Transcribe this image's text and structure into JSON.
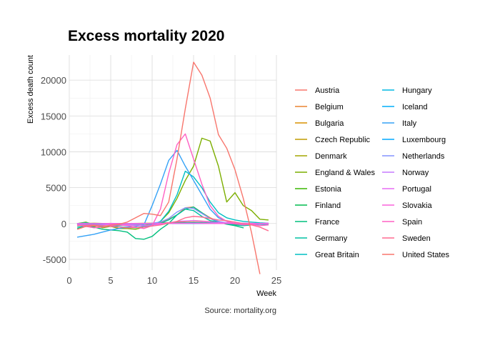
{
  "chart_data": {
    "type": "line",
    "title": "Excess mortality 2020",
    "xlabel": "Week",
    "ylabel": "Excess death count",
    "caption": "Source: mortality.org",
    "xlim": [
      0,
      25
    ],
    "ylim": [
      -6500,
      23500
    ],
    "xticks": [
      0,
      5,
      10,
      15,
      20,
      25
    ],
    "yticks": [
      -5000,
      0,
      5000,
      10000,
      15000,
      20000
    ],
    "grid": true,
    "legend_position": "right",
    "series": [
      {
        "name": "Austria",
        "color": "#F8766D",
        "x": [
          1,
          3,
          5,
          7,
          9,
          11,
          13,
          15,
          17,
          19,
          21,
          23,
          24
        ],
        "y": [
          0,
          -60,
          20,
          -40,
          10,
          60,
          200,
          420,
          260,
          90,
          20,
          0,
          -20
        ]
      },
      {
        "name": "Belgium",
        "color": "#EA8331",
        "x": [
          1,
          3,
          5,
          7,
          9,
          11,
          12,
          13,
          14,
          15,
          16,
          17,
          18,
          19,
          20,
          21,
          22,
          23,
          24
        ],
        "y": [
          -200,
          -400,
          -300,
          -200,
          -100,
          120,
          600,
          1200,
          2200,
          2300,
          1500,
          800,
          300,
          0,
          -100,
          -150,
          -100,
          -120,
          -100
        ]
      },
      {
        "name": "Bulgaria",
        "color": "#D89000",
        "x": [
          1,
          3,
          5,
          7,
          9,
          11,
          13,
          15,
          17,
          19,
          21,
          23,
          24
        ],
        "y": [
          0,
          20,
          -10,
          0,
          30,
          50,
          80,
          60,
          40,
          20,
          0,
          -10,
          0
        ]
      },
      {
        "name": "Czech Republic",
        "color": "#C09B00",
        "x": [
          1,
          3,
          5,
          7,
          9,
          11,
          13,
          15,
          17,
          19,
          21,
          23,
          24
        ],
        "y": [
          -100,
          -200,
          -150,
          -100,
          -120,
          0,
          150,
          200,
          100,
          50,
          0,
          -50,
          -30
        ]
      },
      {
        "name": "Denmark",
        "color": "#A3A500",
        "x": [
          1,
          3,
          5,
          7,
          9,
          11,
          13,
          15,
          17,
          19,
          21,
          23,
          24
        ],
        "y": [
          0,
          30,
          -20,
          10,
          -40,
          20,
          100,
          150,
          80,
          20,
          0,
          -10,
          0
        ]
      },
      {
        "name": "England & Wales",
        "color": "#7CAE00",
        "x": [
          1,
          2,
          3,
          4,
          5,
          6,
          7,
          8,
          9,
          10,
          11,
          12,
          13,
          14,
          15,
          16,
          17,
          18,
          19,
          20,
          21,
          22,
          23,
          24
        ],
        "y": [
          0,
          200,
          -200,
          -600,
          -400,
          -700,
          -700,
          -800,
          -500,
          -300,
          300,
          1500,
          3500,
          6000,
          8000,
          11900,
          11500,
          8000,
          3000,
          4300,
          2500,
          1800,
          600,
          500
        ]
      },
      {
        "name": "Estonia",
        "color": "#39B600",
        "x": [
          1,
          3,
          5,
          7,
          9,
          11,
          13,
          15,
          17,
          19,
          21,
          23,
          24
        ],
        "y": [
          0,
          -10,
          10,
          0,
          -5,
          5,
          10,
          15,
          5,
          0,
          -5,
          0,
          0
        ]
      },
      {
        "name": "Finland",
        "color": "#00BB4E",
        "x": [
          1,
          3,
          5,
          7,
          9,
          11,
          13,
          15,
          17,
          19,
          21,
          23,
          24
        ],
        "y": [
          0,
          -20,
          10,
          -10,
          0,
          20,
          50,
          60,
          30,
          10,
          0,
          -10,
          0
        ]
      },
      {
        "name": "France",
        "color": "#00BF7D",
        "x": [
          1,
          2,
          3,
          4,
          5,
          6,
          7,
          8,
          9,
          10,
          11,
          12,
          13,
          14,
          15,
          16,
          17,
          18,
          19,
          20,
          21
        ],
        "y": [
          -700,
          -400,
          -500,
          -800,
          -900,
          -1000,
          -1200,
          -2100,
          -2200,
          -1800,
          -800,
          0,
          1200,
          2000,
          2300,
          1500,
          700,
          200,
          -100,
          -300,
          -600
        ]
      },
      {
        "name": "Germany",
        "color": "#00C1A3",
        "x": [
          1,
          3,
          5,
          7,
          9,
          11,
          12,
          13,
          14,
          15,
          16,
          17,
          18,
          19,
          20,
          21,
          22,
          23,
          24
        ],
        "y": [
          -500,
          -300,
          -400,
          -200,
          -300,
          0,
          500,
          1200,
          2000,
          1800,
          1000,
          400,
          200,
          0,
          -200,
          -300,
          -200,
          -100,
          -200
        ]
      },
      {
        "name": "Great Britain",
        "color": "#00BFC4",
        "x": [
          1,
          2,
          3,
          4,
          5,
          6,
          7,
          8,
          9,
          10,
          11,
          12,
          13,
          14,
          15,
          16,
          17,
          18,
          19,
          20,
          21,
          22,
          23,
          24
        ],
        "y": [
          0,
          100,
          -100,
          -400,
          -300,
          -500,
          -500,
          -600,
          -400,
          -200,
          300,
          1700,
          4000,
          7300,
          6500,
          5000,
          3000,
          1500,
          800,
          500,
          300,
          200,
          100,
          50
        ]
      },
      {
        "name": "Hungary",
        "color": "#00B9E3",
        "x": [
          1,
          3,
          5,
          7,
          9,
          11,
          13,
          15,
          17,
          19,
          21,
          23,
          24
        ],
        "y": [
          -50,
          -100,
          -50,
          -80,
          -60,
          0,
          80,
          120,
          60,
          20,
          0,
          -20,
          -10
        ]
      },
      {
        "name": "Iceland",
        "color": "#00ADFA",
        "x": [
          1,
          3,
          5,
          7,
          9,
          11,
          13,
          15,
          17,
          19,
          21,
          23,
          24
        ],
        "y": [
          0,
          5,
          -5,
          0,
          5,
          0,
          10,
          5,
          0,
          -5,
          0,
          0,
          0
        ]
      },
      {
        "name": "Italy",
        "color": "#35A2F6",
        "x": [
          1,
          2,
          3,
          4,
          5,
          6,
          7,
          8,
          9,
          10,
          11,
          12,
          13,
          14,
          15,
          16,
          17,
          18,
          19,
          20,
          21
        ],
        "y": [
          -1900,
          -1700,
          -1500,
          -1200,
          -900,
          -700,
          -500,
          -400,
          -200,
          2500,
          5500,
          8800,
          10200,
          8000,
          6000,
          4000,
          2000,
          800,
          300,
          0,
          -200
        ]
      },
      {
        "name": "Luxembourg",
        "color": "#00A9FF",
        "x": [
          1,
          3,
          5,
          7,
          9,
          11,
          13,
          15,
          17,
          19,
          21,
          23,
          24
        ],
        "y": [
          0,
          -10,
          5,
          0,
          -5,
          5,
          20,
          15,
          5,
          0,
          -5,
          0,
          0
        ]
      },
      {
        "name": "Netherlands",
        "color": "#8494FF",
        "x": [
          1,
          3,
          5,
          7,
          9,
          11,
          12,
          13,
          14,
          15,
          16,
          17,
          18,
          19,
          20,
          21,
          22,
          23,
          24
        ],
        "y": [
          -100,
          -200,
          -150,
          -100,
          -100,
          200,
          700,
          1600,
          2200,
          2100,
          1400,
          700,
          300,
          100,
          0,
          -100,
          -50,
          -100,
          -50
        ]
      },
      {
        "name": "Norway",
        "color": "#C77CFF",
        "x": [
          1,
          3,
          5,
          7,
          9,
          11,
          13,
          15,
          17,
          19,
          21,
          23,
          24
        ],
        "y": [
          0,
          -30,
          -10,
          -20,
          -10,
          10,
          40,
          30,
          10,
          0,
          -10,
          0,
          0
        ]
      },
      {
        "name": "Portugal",
        "color": "#E76BF3",
        "x": [
          1,
          3,
          5,
          7,
          9,
          11,
          13,
          15,
          17,
          19,
          21,
          23,
          24
        ],
        "y": [
          -200,
          -300,
          -100,
          -200,
          -300,
          -100,
          300,
          400,
          200,
          100,
          50,
          0,
          50
        ]
      },
      {
        "name": "Slovakia",
        "color": "#FA62DB",
        "x": [
          1,
          3,
          5,
          7,
          9,
          11,
          13,
          15,
          17,
          19,
          21,
          23,
          24
        ],
        "y": [
          0,
          -20,
          10,
          -10,
          -20,
          0,
          20,
          30,
          10,
          0,
          -10,
          0,
          0
        ]
      },
      {
        "name": "Spain",
        "color": "#FF61C3",
        "x": [
          1,
          2,
          3,
          4,
          5,
          6,
          7,
          8,
          9,
          10,
          11,
          12,
          13,
          14,
          15,
          16,
          17,
          18,
          19,
          20,
          21,
          22,
          23,
          24
        ],
        "y": [
          -200,
          -400,
          -600,
          -500,
          -300,
          -200,
          -300,
          -500,
          -700,
          -300,
          2000,
          7000,
          11000,
          12500,
          9000,
          5500,
          2500,
          1000,
          300,
          0,
          -200,
          -100,
          -300,
          -200
        ]
      },
      {
        "name": "Sweden",
        "color": "#FF6C91",
        "x": [
          1,
          3,
          5,
          7,
          9,
          11,
          13,
          14,
          15,
          16,
          17,
          18,
          19,
          20,
          21,
          22,
          23,
          24
        ],
        "y": [
          -300,
          -200,
          -400,
          -600,
          -500,
          -200,
          300,
          800,
          1000,
          900,
          700,
          500,
          400,
          200,
          0,
          -200,
          -500,
          -1000
        ]
      },
      {
        "name": "United States",
        "color": "#F8766D",
        "x": [
          1,
          2,
          3,
          4,
          5,
          6,
          7,
          8,
          9,
          10,
          11,
          12,
          13,
          14,
          15,
          16,
          17,
          18,
          19,
          20,
          21,
          22,
          23
        ],
        "y": [
          -800,
          -400,
          -300,
          -500,
          -200,
          -100,
          200,
          800,
          1400,
          1300,
          1100,
          3000,
          9000,
          16000,
          22500,
          20700,
          17500,
          12400,
          10500,
          7500,
          3500,
          -1300,
          -7000
        ]
      }
    ]
  }
}
